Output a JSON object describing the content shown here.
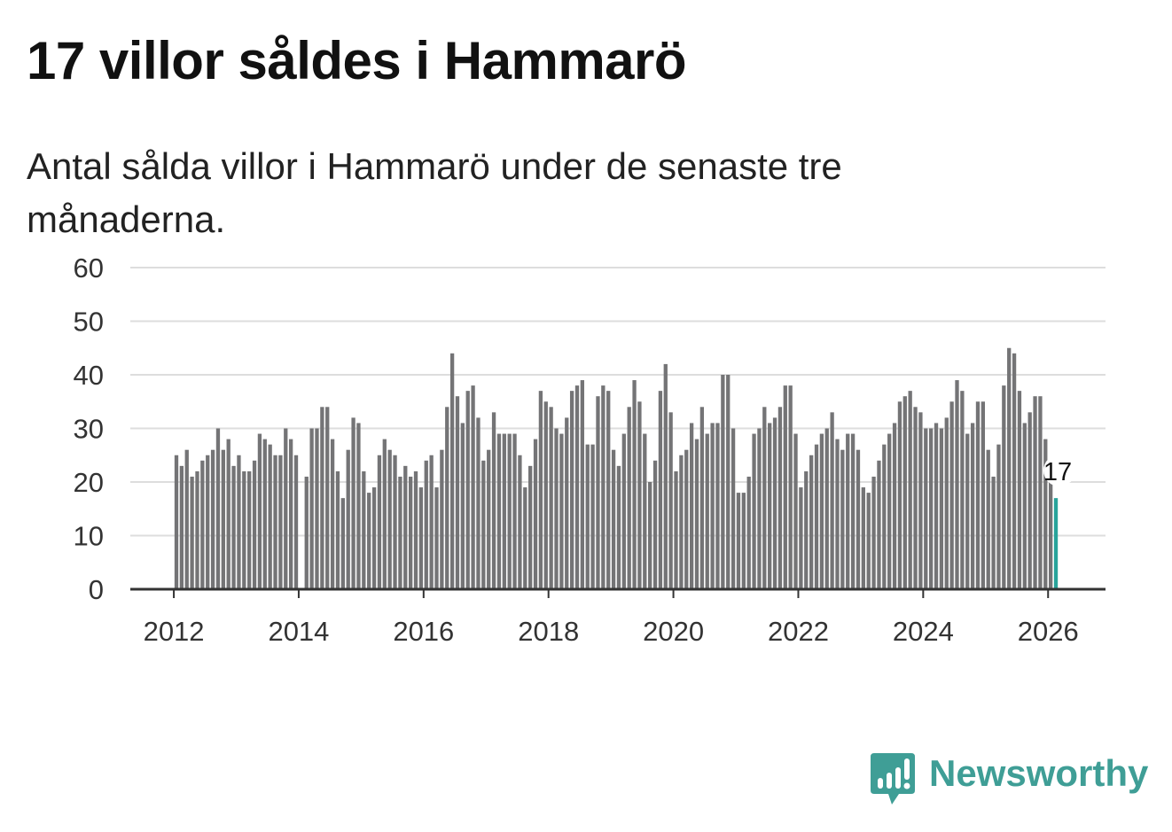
{
  "title": "17 villor såldes i Hammarö",
  "subtitle": "Antal sålda villor i Hammarö under de senaste tre månaderna.",
  "brand": "Newsworthy",
  "colors": {
    "bar": "#747476",
    "highlight": "#28a39a",
    "brand": "#3f9e96"
  },
  "chart_data": {
    "type": "bar",
    "title": "17 villor såldes i Hammarö",
    "xlabel": "",
    "ylabel": "",
    "ylim": [
      0,
      60
    ],
    "y_ticks": [
      0,
      10,
      20,
      30,
      40,
      50,
      60
    ],
    "x_ticks": [
      "2012",
      "2014",
      "2016",
      "2018",
      "2020",
      "2022",
      "2024",
      "2026"
    ],
    "x_start": "2012-01",
    "frequency": "monthly (rolling 3-month total)",
    "grid": true,
    "highlight_label": "17",
    "values": [
      25,
      23,
      26,
      21,
      22,
      24,
      25,
      26,
      30,
      26,
      28,
      23,
      25,
      22,
      22,
      24,
      29,
      28,
      27,
      25,
      25,
      30,
      28,
      25,
      null,
      21,
      30,
      30,
      34,
      34,
      28,
      22,
      17,
      26,
      32,
      31,
      22,
      18,
      19,
      25,
      28,
      26,
      25,
      21,
      23,
      21,
      22,
      19,
      24,
      25,
      19,
      26,
      34,
      44,
      36,
      31,
      37,
      38,
      32,
      24,
      26,
      33,
      29,
      29,
      29,
      29,
      25,
      19,
      23,
      28,
      37,
      35,
      34,
      30,
      29,
      32,
      37,
      38,
      39,
      27,
      27,
      36,
      38,
      37,
      26,
      23,
      29,
      34,
      39,
      35,
      29,
      20,
      24,
      37,
      42,
      33,
      22,
      25,
      26,
      31,
      28,
      34,
      29,
      31,
      31,
      40,
      40,
      30,
      18,
      18,
      21,
      29,
      30,
      34,
      31,
      32,
      34,
      38,
      38,
      29,
      19,
      22,
      25,
      27,
      29,
      30,
      33,
      28,
      26,
      29,
      29,
      26,
      19,
      18,
      21,
      24,
      27,
      29,
      31,
      35,
      36,
      37,
      34,
      33,
      30,
      30,
      31,
      30,
      32,
      35,
      39,
      37,
      29,
      31,
      35,
      35,
      26,
      21,
      27,
      38,
      45,
      44,
      37,
      31,
      33,
      36,
      36,
      28,
      20,
      17
    ]
  }
}
